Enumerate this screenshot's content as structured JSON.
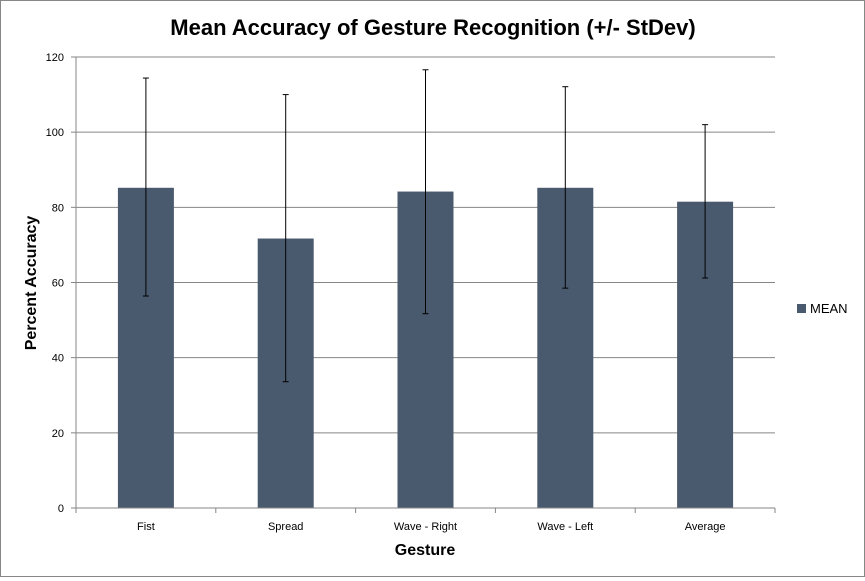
{
  "chart_data": {
    "type": "bar",
    "title": "Mean Accuracy of Gesture Recognition (+/- StDev)",
    "xlabel": "Gesture",
    "ylabel": "Percent Accuracy",
    "categories": [
      "Fist",
      "Spread",
      "Wave - Right",
      "Wave - Left",
      "Average"
    ],
    "series": [
      {
        "name": "MEAN",
        "values": [
          85.2,
          71.7,
          84.2,
          85.2,
          81.5
        ],
        "error_low": [
          56.4,
          33.6,
          51.7,
          58.5,
          61.2
        ],
        "error_high": [
          114.4,
          110.0,
          116.6,
          112.1,
          102.0
        ],
        "color": "#4a5a6e"
      }
    ],
    "ylim": [
      0,
      120
    ],
    "yticks": [
      0,
      20,
      40,
      60,
      80,
      100,
      120
    ],
    "grid": true,
    "legend_position": "right"
  }
}
